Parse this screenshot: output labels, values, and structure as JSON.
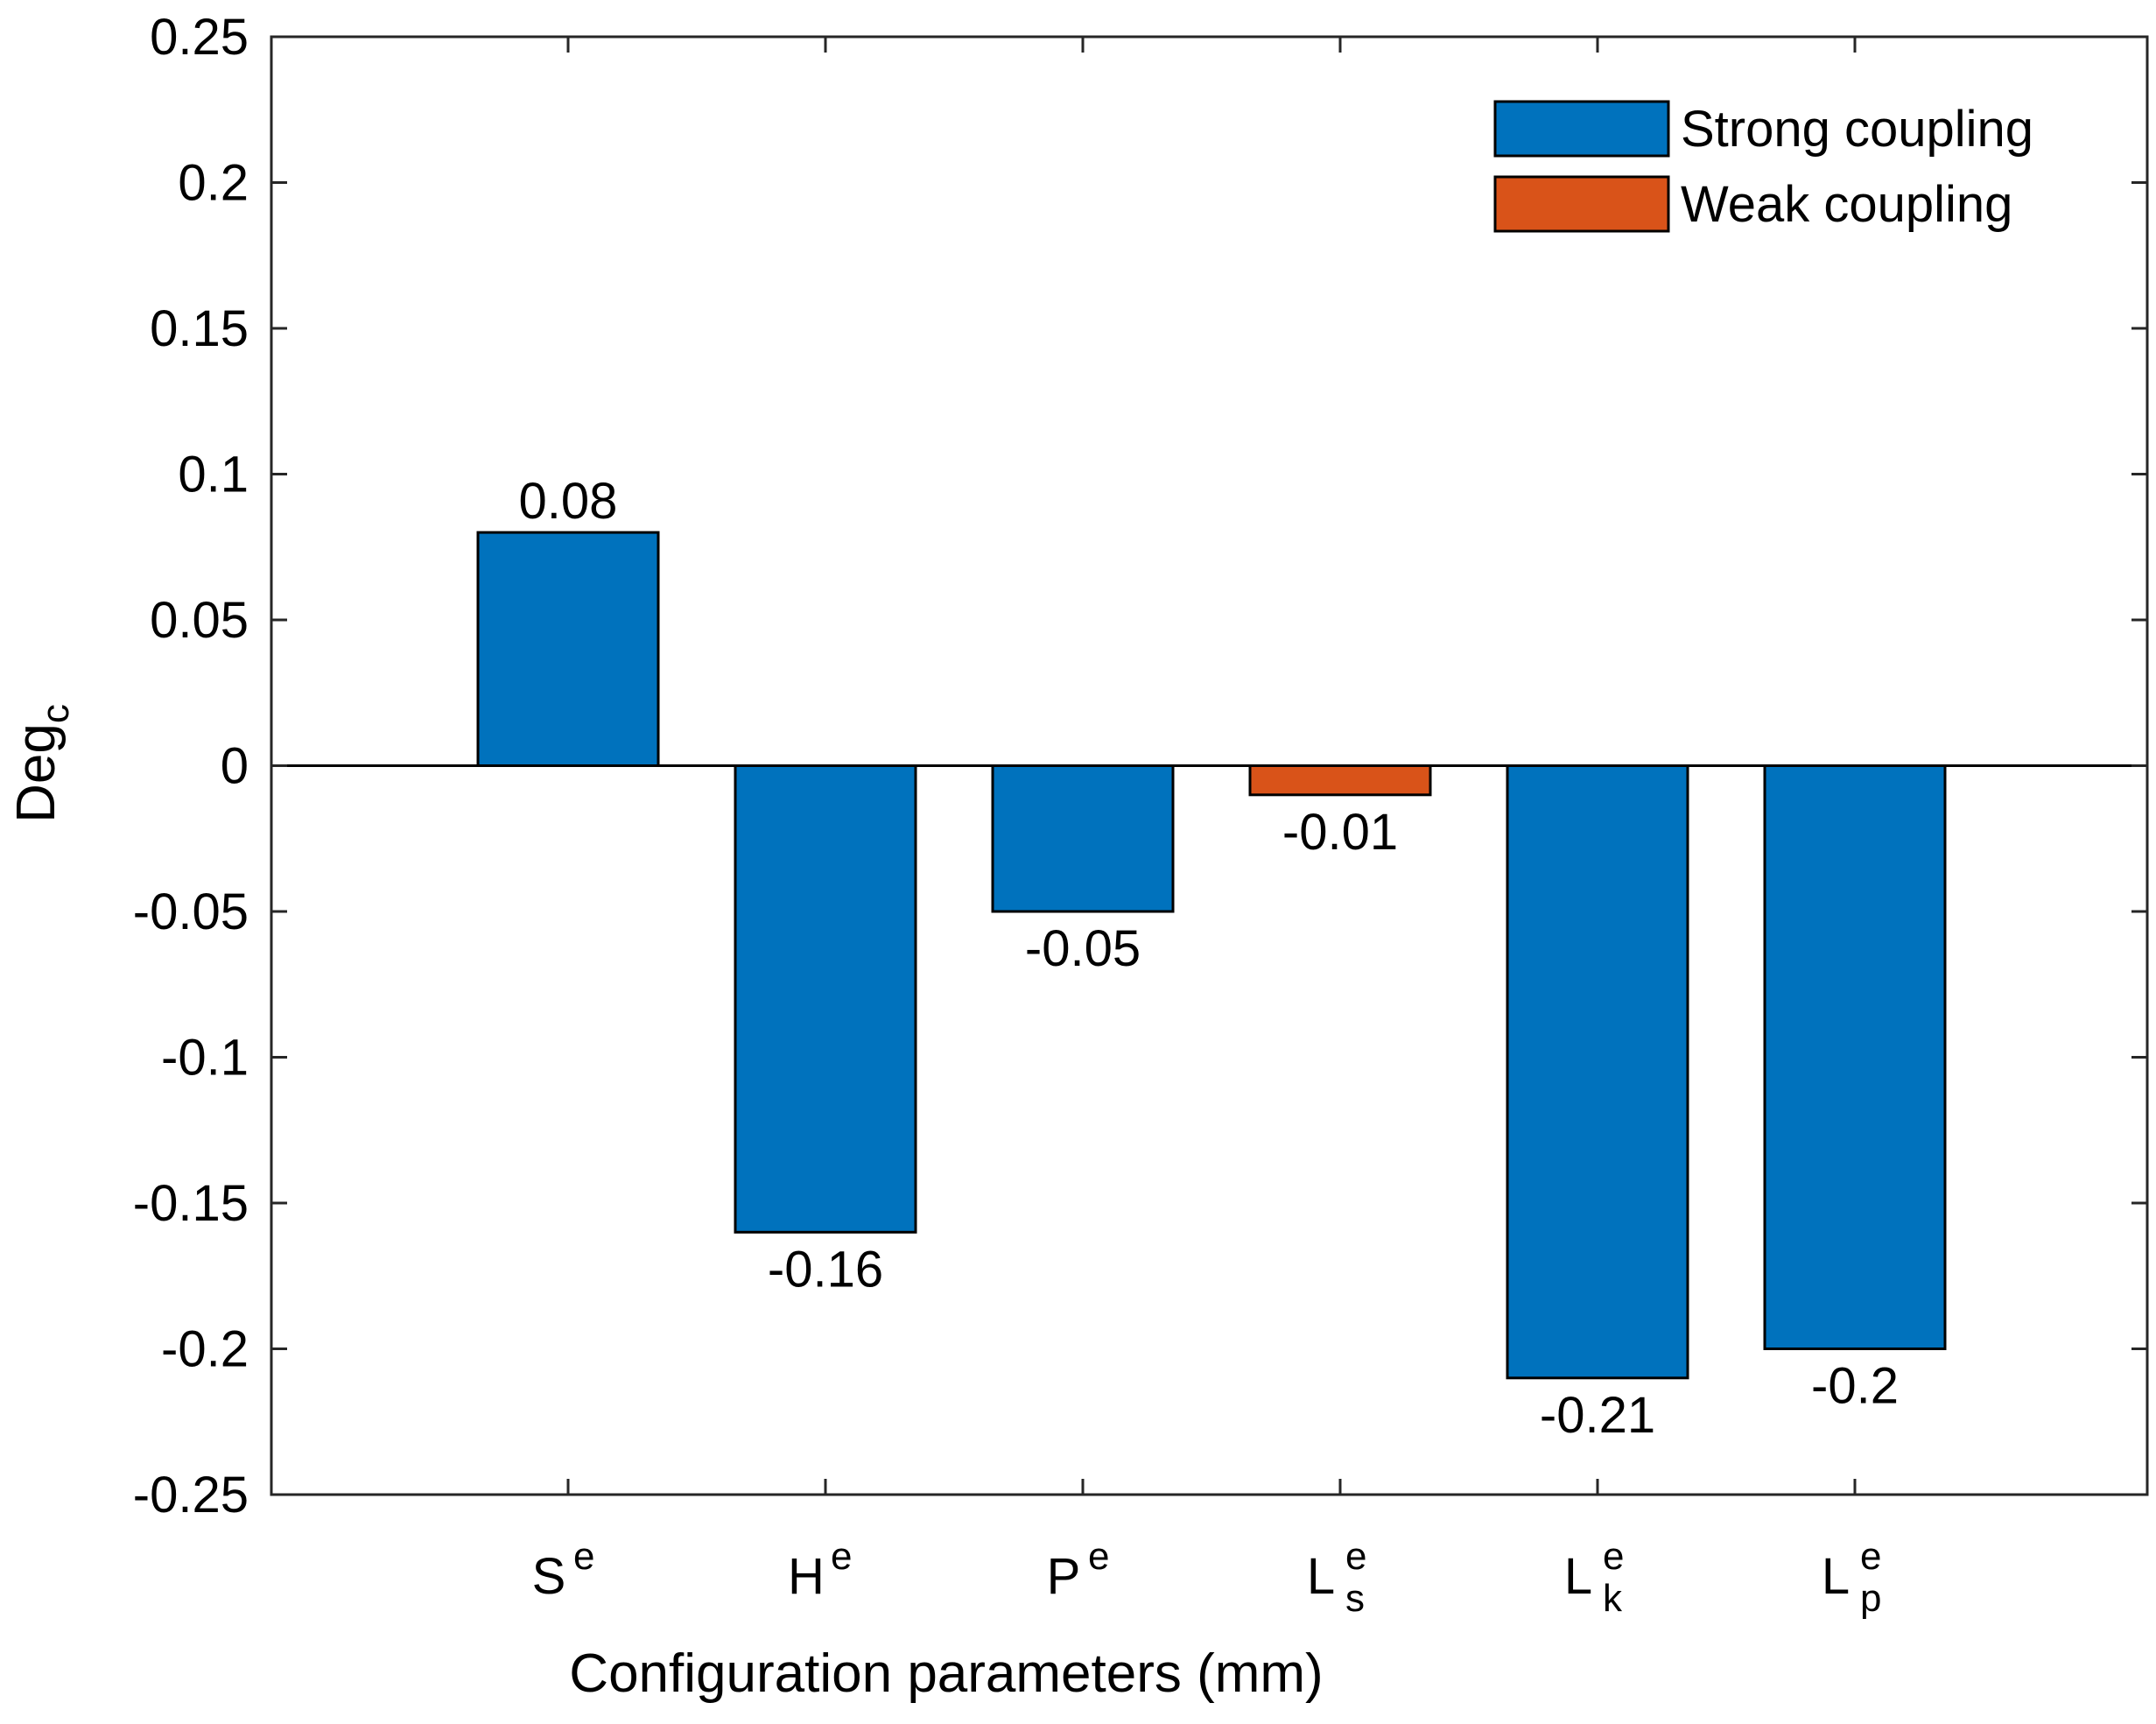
{
  "chart_data": {
    "type": "bar",
    "xlabel": "Configuration parameters (mm)",
    "ylabel": {
      "base": "Deg",
      "sub": "c"
    },
    "ylim": [
      -0.25,
      0.25
    ],
    "yticks": [
      0.25,
      0.2,
      0.15,
      0.1,
      0.05,
      0,
      -0.05,
      -0.1,
      -0.15,
      -0.2,
      -0.25
    ],
    "ytick_labels": [
      "0.25",
      "0.2",
      "0.15",
      "0.1",
      "0.05",
      "0",
      "-0.05",
      "-0.1",
      "-0.15",
      "-0.2",
      "-0.25"
    ],
    "categories": [
      {
        "base": "S",
        "sup": "e",
        "sub": ""
      },
      {
        "base": "H",
        "sup": "e",
        "sub": ""
      },
      {
        "base": "P",
        "sup": "e",
        "sub": ""
      },
      {
        "base": "L",
        "sup": "e",
        "sub": "s"
      },
      {
        "base": "L",
        "sup": "e",
        "sub": "k"
      },
      {
        "base": "L",
        "sup": "e",
        "sub": "p"
      }
    ],
    "values": [
      0.08,
      -0.16,
      -0.05,
      -0.01,
      -0.21,
      -0.2
    ],
    "value_labels": [
      "0.08",
      "-0.16",
      "-0.05",
      "-0.01",
      "-0.21",
      "-0.2"
    ],
    "coupling": [
      "Strong coupling",
      "Strong coupling",
      "Strong coupling",
      "Weak coupling",
      "Strong coupling",
      "Strong coupling"
    ],
    "legend": {
      "position": "top-right",
      "entries": [
        {
          "label": "Strong coupling",
          "color": "#0072BD"
        },
        {
          "label": "Weak coupling",
          "color": "#D95319"
        }
      ]
    },
    "grid": false
  }
}
